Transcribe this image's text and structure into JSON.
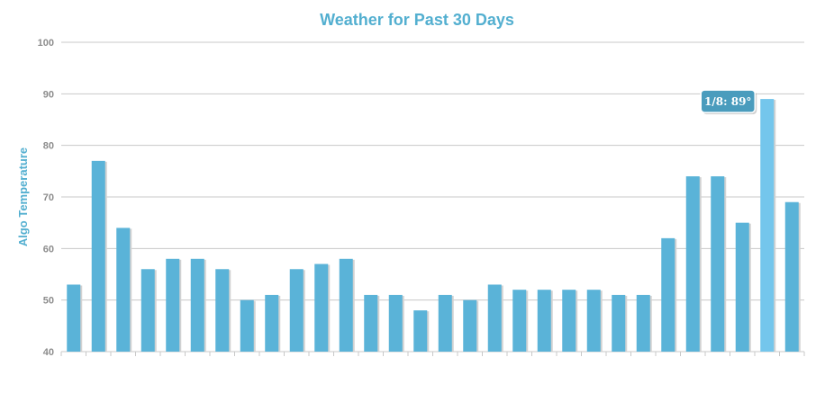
{
  "chart_data": {
    "type": "bar",
    "title": "Weather for Past 30 Days",
    "xlabel": "",
    "ylabel": "Algo Temperature",
    "ylim": [
      40,
      100
    ],
    "yticks": [
      40,
      50,
      60,
      70,
      80,
      90,
      100
    ],
    "grid": true,
    "bar_color": "#5ab3d8",
    "highlight_color": "#74c6ec",
    "values": [
      53,
      77,
      64,
      56,
      58,
      58,
      56,
      50,
      51,
      56,
      57,
      58,
      51,
      51,
      48,
      51,
      50,
      53,
      52,
      52,
      52,
      52,
      51,
      51,
      62,
      74,
      74,
      65,
      89,
      69
    ],
    "highlight_index": 28,
    "tooltip": {
      "text": "1/8: 89°",
      "color": "#4a9cbd"
    }
  }
}
